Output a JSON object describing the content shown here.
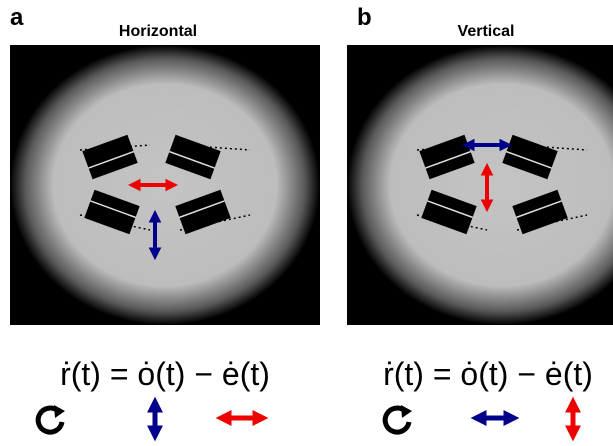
{
  "panels": [
    {
      "letter": "a",
      "title": "Horizontal",
      "equation": "ṙ(t) = ȯ(t) − ė(t)"
    },
    {
      "letter": "b",
      "title": "Vertical",
      "equation": "ṙ(t) = ȯ(t) − ė(t)"
    }
  ]
}
